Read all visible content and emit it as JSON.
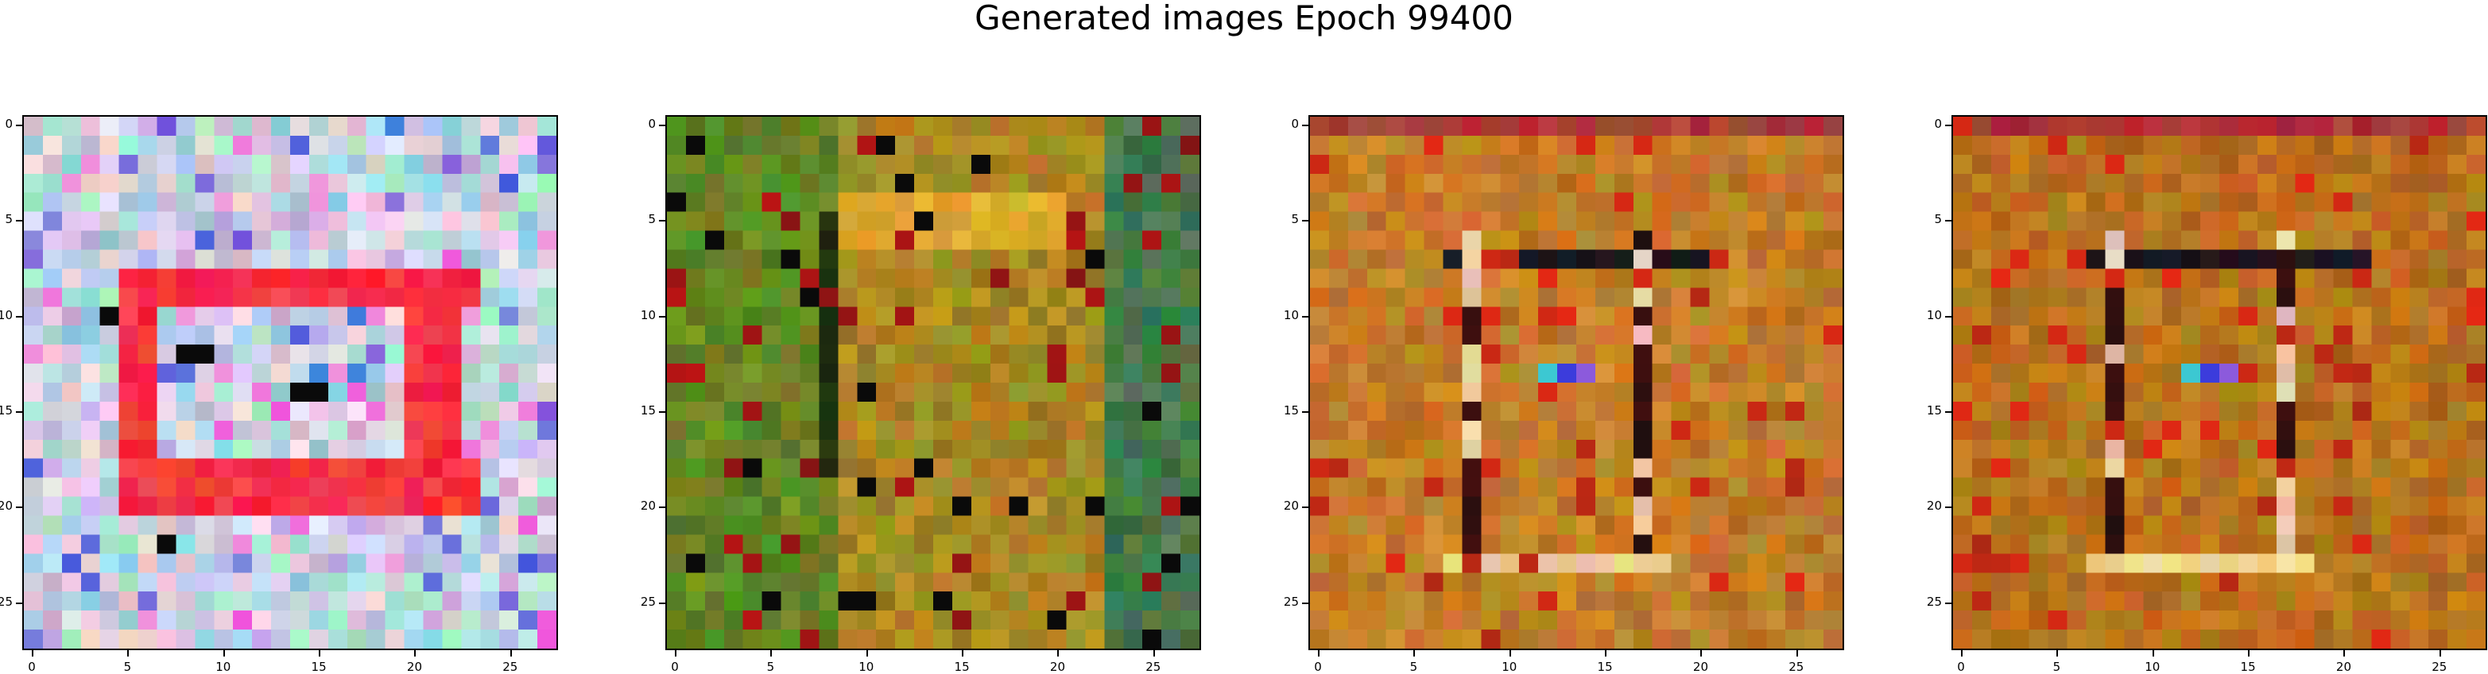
{
  "figure": {
    "title": "Generated images Epoch 99400",
    "tick_labels": [
      "0",
      "5",
      "10",
      "15",
      "20",
      "25"
    ]
  },
  "panels": [
    {
      "id": 1,
      "palette": "pastel-pink-red",
      "accent": "#e8223a"
    },
    {
      "id": 2,
      "palette": "green-olive",
      "accent": "#5a7a1a"
    },
    {
      "id": 3,
      "palette": "orange-brown",
      "accent": "#b8702a"
    },
    {
      "id": 4,
      "palette": "orange-brown-dark",
      "accent": "#a8601c"
    }
  ]
}
